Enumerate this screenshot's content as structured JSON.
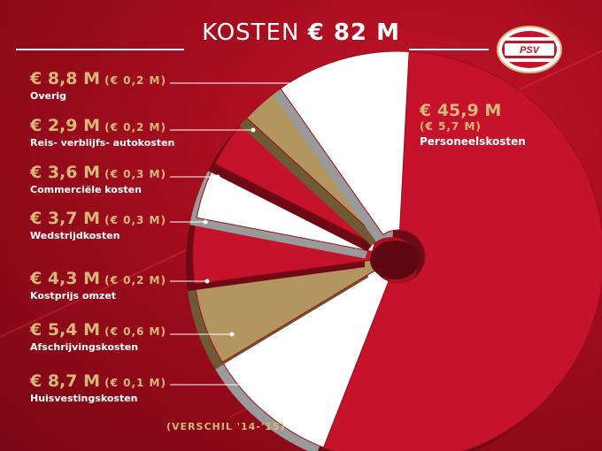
{
  "header": {
    "title_light": "KOSTEN",
    "title_bold": "€ 82 M"
  },
  "logo": {
    "text": "PSV"
  },
  "footnote": "(VERSCHIL '14-'15)",
  "colors": {
    "red": "#c4132b",
    "gold": "#b39560",
    "white": "#ffffff",
    "label_gold": "#d6b87a"
  },
  "chart_data": {
    "type": "pie",
    "title": "KOSTEN € 82 M",
    "unit": "€ M",
    "total": 82,
    "note": "(VERSCHIL '14-'15)",
    "slices": [
      {
        "label": "Personeelskosten",
        "value": 45.9,
        "value_text": "€ 45,9 M",
        "change_text": "(€ 5,7 M)",
        "color": "#c4132b"
      },
      {
        "label": "Huisvestingskosten",
        "value": 8.7,
        "value_text": "€ 8,7 M",
        "change_text": "(€ 0,1 M)",
        "color": "#ffffff"
      },
      {
        "label": "Afschrijvingskosten",
        "value": 5.4,
        "value_text": "€ 5,4 M",
        "change_text": "(€ 0,6 M)",
        "color": "#b39560"
      },
      {
        "label": "Kostprijs omzet",
        "value": 4.3,
        "value_text": "€ 4,3 M",
        "change_text": "(€ 0,2 M)",
        "color": "#c4132b"
      },
      {
        "label": "Wedstrijdkosten",
        "value": 3.7,
        "value_text": "€ 3,7 M",
        "change_text": "(€ 0,3 M)",
        "color": "#ffffff"
      },
      {
        "label": "Commerciële kosten",
        "value": 3.6,
        "value_text": "€ 3,6 M",
        "change_text": "(€ 0,3 M)",
        "color": "#c4132b"
      },
      {
        "label": "Reis- verblijfs- autokosten",
        "value": 2.9,
        "value_text": "€ 2,9 M",
        "change_text": "(€ 0,2 M)",
        "color": "#b39560"
      },
      {
        "label": "Overig",
        "value": 8.8,
        "value_text": "€ 8,8 M",
        "change_text": "(€ 0,2 M)",
        "color": "#ffffff"
      }
    ]
  }
}
